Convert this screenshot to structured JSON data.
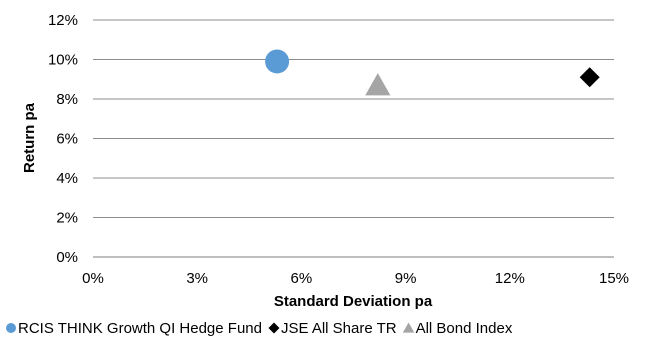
{
  "chart_data": {
    "type": "scatter",
    "xlabel": "Standard Deviation pa",
    "ylabel": "Return pa",
    "xlim": [
      0,
      15
    ],
    "ylim": [
      0,
      12
    ],
    "x_ticks": [
      "0%",
      "3%",
      "6%",
      "9%",
      "12%",
      "15%"
    ],
    "x_tick_values": [
      0,
      3,
      6,
      9,
      12,
      15
    ],
    "y_ticks": [
      "0%",
      "2%",
      "4%",
      "6%",
      "8%",
      "10%",
      "12%"
    ],
    "y_tick_values": [
      0,
      2,
      4,
      6,
      8,
      10,
      12
    ],
    "grid": "horizontal",
    "legend_position": "bottom",
    "series": [
      {
        "name": "RCIS THINK Growth QI Hedge Fund",
        "marker": "circle",
        "color": "#5B9BD5",
        "x": 5.3,
        "y": 9.9
      },
      {
        "name": "JSE All Share TR",
        "marker": "diamond",
        "color": "#000000",
        "x": 14.3,
        "y": 9.1
      },
      {
        "name": "All Bond Index",
        "marker": "triangle",
        "color": "#A5A5A5",
        "x": 8.2,
        "y": 8.7
      }
    ]
  }
}
